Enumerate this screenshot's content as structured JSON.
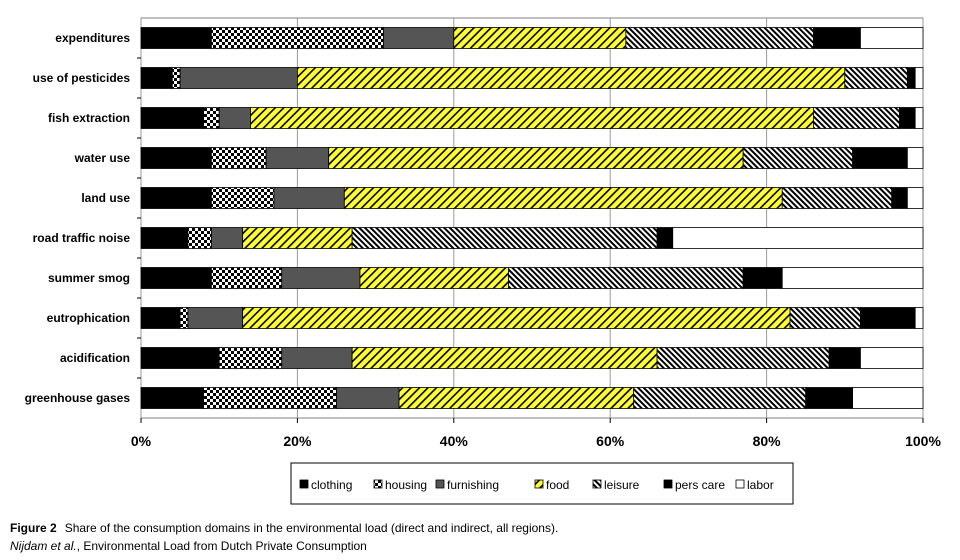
{
  "chart_data": {
    "type": "bar",
    "orientation": "horizontal",
    "stacked": "percent",
    "categories": [
      "expenditures",
      "use of pesticides",
      "fish extraction",
      "water use",
      "land use",
      "road traffic noise",
      "summer smog",
      "eutrophication",
      "acidification",
      "greenhouse gases"
    ],
    "series": [
      {
        "name": "clothing",
        "color": "#000000",
        "pattern": "solid",
        "values": [
          9,
          4,
          8,
          9,
          9,
          6,
          9,
          5,
          10,
          8
        ]
      },
      {
        "name": "housing",
        "color": "#ffffff",
        "pattern": "checkerboard",
        "values": [
          22,
          1,
          2,
          7,
          8,
          3,
          9,
          1,
          8,
          17
        ]
      },
      {
        "name": "furnishing",
        "color": "#555555",
        "pattern": "solid",
        "values": [
          9,
          15,
          4,
          8,
          9,
          4,
          10,
          7,
          9,
          8
        ]
      },
      {
        "name": "food",
        "color": "#ffff33",
        "pattern": "hatch",
        "values": [
          22,
          70,
          72,
          53,
          56,
          14,
          19,
          70,
          39,
          30
        ]
      },
      {
        "name": "leisure",
        "color": "#ffffff",
        "pattern": "dense-hatch",
        "values": [
          24,
          8,
          11,
          14,
          14,
          39,
          30,
          9,
          22,
          22
        ]
      },
      {
        "name": "pers care",
        "color": "#000000",
        "pattern": "solid",
        "values": [
          6,
          1,
          2,
          7,
          2,
          2,
          5,
          7,
          4,
          6
        ]
      },
      {
        "name": "labor",
        "color": "#ffffff",
        "pattern": "solid",
        "values": [
          8,
          1,
          1,
          2,
          2,
          32,
          18,
          1,
          8,
          9
        ]
      }
    ],
    "x_ticks": [
      "0%",
      "20%",
      "40%",
      "60%",
      "80%",
      "100%"
    ],
    "xlim": [
      0,
      100
    ],
    "grid": "vertical",
    "legend_position": "bottom"
  },
  "caption": {
    "figure_label": "Figure 2",
    "text": "Share of the consumption domains in the environmental load (direct and indirect, all regions).",
    "authors": "Nijdam et al.",
    "source_rest": ", Environmental Load from Dutch Private Consumption"
  }
}
